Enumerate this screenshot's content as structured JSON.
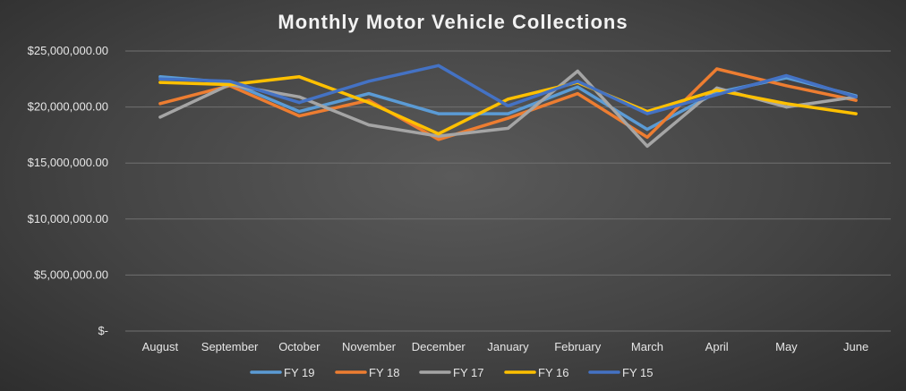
{
  "chart_data": {
    "type": "line",
    "title": "Monthly Motor Vehicle Collections",
    "xlabel": "",
    "ylabel": "",
    "ylim": [
      0,
      25000000
    ],
    "yticks": [
      {
        "value": 0,
        "label": "$-"
      },
      {
        "value": 5000000,
        "label": "$5,000,000.00"
      },
      {
        "value": 10000000,
        "label": "$10,000,000.00"
      },
      {
        "value": 15000000,
        "label": "$15,000,000.00"
      },
      {
        "value": 20000000,
        "label": "$20,000,000.00"
      },
      {
        "value": 25000000,
        "label": "$25,000,000.00"
      }
    ],
    "grid": true,
    "legend_position": "bottom",
    "categories": [
      "August",
      "September",
      "October",
      "November",
      "December",
      "January",
      "February",
      "March",
      "April",
      "May",
      "June"
    ],
    "series": [
      {
        "name": "FY 19",
        "color": "#5b9bd5",
        "values": [
          22700000,
          22200000,
          19600000,
          21200000,
          19400000,
          19400000,
          21800000,
          18000000,
          21300000,
          22600000,
          21000000
        ]
      },
      {
        "name": "FY 18",
        "color": "#ed7d31",
        "values": [
          20300000,
          21900000,
          19200000,
          20600000,
          17100000,
          19000000,
          21200000,
          17300000,
          23400000,
          21900000,
          20600000
        ]
      },
      {
        "name": "FY 17",
        "color": "#a5a5a5",
        "values": [
          19100000,
          22000000,
          20900000,
          18400000,
          17400000,
          18100000,
          23200000,
          16500000,
          21700000,
          20000000,
          20900000
        ]
      },
      {
        "name": "FY 16",
        "color": "#ffc000",
        "values": [
          22200000,
          22000000,
          22700000,
          20400000,
          17600000,
          20700000,
          22200000,
          19600000,
          21500000,
          20300000,
          19400000
        ]
      },
      {
        "name": "FY 15",
        "color": "#4472c4",
        "values": [
          22500000,
          22300000,
          20400000,
          22300000,
          23700000,
          20100000,
          22300000,
          19400000,
          21100000,
          22800000,
          20900000
        ]
      }
    ]
  }
}
